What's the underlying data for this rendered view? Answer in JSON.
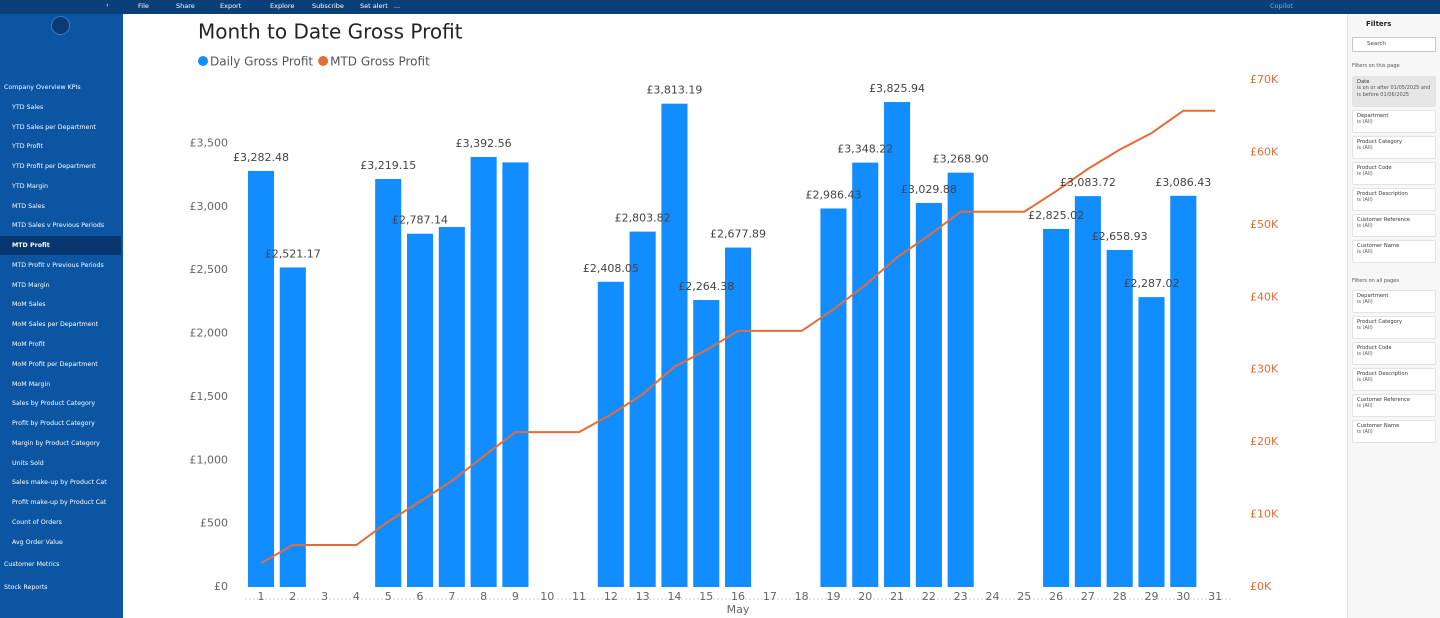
{
  "top_bar": {
    "menu": [
      "File",
      "Share",
      "Export",
      "Explore",
      "Subscribe",
      "Set alert",
      "..."
    ],
    "copilot": "Copilot"
  },
  "nav": {
    "sections": [
      {
        "title": "Company Overview KPIs",
        "items": [
          {
            "label": "YTD Sales"
          },
          {
            "label": "YTD Sales per Department"
          },
          {
            "label": "YTD Profit"
          },
          {
            "label": "YTD Profit per Department"
          },
          {
            "label": "YTD Margin"
          },
          {
            "label": "MTD Sales"
          },
          {
            "label": "MTD Sales v Previous Periods"
          },
          {
            "label": "MTD Profit",
            "selected": true
          },
          {
            "label": "MTD Profit v Previous Periods"
          },
          {
            "label": "MTD Margin"
          },
          {
            "label": "MoM Sales"
          },
          {
            "label": "MoM Sales per Department"
          },
          {
            "label": "MoM Profit"
          },
          {
            "label": "MoM Profit per Department"
          },
          {
            "label": "MoM Margin"
          },
          {
            "label": "Sales by Product Category"
          },
          {
            "label": "Profit by Product Category"
          },
          {
            "label": "Margin by Product Category"
          },
          {
            "label": "Units Sold"
          },
          {
            "label": "Sales make-up by Product Cat"
          },
          {
            "label": "Profit make-up by Product Cat"
          },
          {
            "label": "Count of Orders"
          },
          {
            "label": "Avg Order Value"
          }
        ]
      },
      {
        "title": "Customer Metrics",
        "items": []
      },
      {
        "title": "Stock Reports",
        "items": []
      }
    ]
  },
  "filters": {
    "title": "Filters",
    "search": "Search",
    "page_heading": "Filters on this page",
    "page_filters": [
      {
        "name": "Date",
        "state": "is on or after 01/05/2025 and is before 01/06/2025",
        "active": true
      },
      {
        "name": "Department",
        "state": "is (All)"
      },
      {
        "name": "Product Category",
        "state": "is (All)"
      },
      {
        "name": "Product Code",
        "state": "is (All)"
      },
      {
        "name": "Product Description",
        "state": "is (All)"
      },
      {
        "name": "Customer Reference",
        "state": "is (All)"
      },
      {
        "name": "Customer Name",
        "state": "is (All)"
      }
    ],
    "all_heading": "Filters on all pages",
    "all_filters": [
      {
        "name": "Department",
        "state": "is (All)"
      },
      {
        "name": "Product Category",
        "state": "is (All)"
      },
      {
        "name": "Product Code",
        "state": "is (All)"
      },
      {
        "name": "Product Description",
        "state": "is (All)"
      },
      {
        "name": "Customer Reference",
        "state": "is (All)"
      },
      {
        "name": "Customer Name",
        "state": "is (All)"
      }
    ]
  },
  "chart_data": {
    "type": "combo",
    "title": "Month to Date Gross Profit",
    "x_label": "May",
    "categories": [
      "1",
      "2",
      "3",
      "4",
      "5",
      "6",
      "7",
      "8",
      "9",
      "10",
      "11",
      "12",
      "13",
      "14",
      "15",
      "16",
      "17",
      "18",
      "19",
      "20",
      "21",
      "22",
      "23",
      "24",
      "25",
      "26",
      "27",
      "28",
      "29",
      "30",
      "31"
    ],
    "series": [
      {
        "name": "Daily Gross Profit",
        "type": "bar",
        "color": "#118DFF",
        "values": [
          3282.48,
          2521.17,
          null,
          null,
          3219.15,
          2787.14,
          2840,
          3392.56,
          3350,
          null,
          null,
          2408.05,
          2803.82,
          3813.19,
          2264.38,
          2677.89,
          null,
          null,
          2986.43,
          3348.22,
          3825.94,
          3029.88,
          3268.9,
          null,
          null,
          2825.02,
          3083.72,
          2658.93,
          2287.02,
          3086.43,
          null
        ],
        "value_labels": [
          "£3,282.48",
          "£2,521.17",
          null,
          null,
          "£3,219.15",
          "£2,787.14",
          null,
          "£3,392.56",
          null,
          null,
          null,
          "£2,408.05",
          "£2,803.82",
          "£3,813.19",
          "£2,264.38",
          "£2,677.89",
          null,
          null,
          "£2,986.43",
          "£3,348.22",
          "£3,825.94",
          "£3,029.88",
          "£3,268.90",
          null,
          null,
          "£2,825.02",
          "£3,083.72",
          "£2,658.93",
          "£2,287.02",
          "£3,086.43",
          null
        ]
      },
      {
        "name": "MTD Gross Profit",
        "type": "line",
        "axis": "y2",
        "color": "#E66C37",
        "values": [
          3282.48,
          5803.65,
          5803.65,
          5803.65,
          9022.8,
          11809.94,
          14649.94,
          18042.5,
          21392.5,
          21392.5,
          21392.5,
          23800.55,
          26604.37,
          30417.56,
          32681.94,
          35359.83,
          35359.83,
          35359.83,
          38346.26,
          41694.48,
          45520.42,
          48550.3,
          51819.2,
          51819.2,
          51819.2,
          54644.22,
          57727.94,
          60386.87,
          62673.89,
          65760.32,
          65760.32
        ]
      }
    ],
    "ylim": [
      0,
      4000
    ],
    "yticks": [
      {
        "value": 0,
        "label": "£0"
      },
      {
        "value": 500,
        "label": "£500"
      },
      {
        "value": 1000,
        "label": "£1,000"
      },
      {
        "value": 1500,
        "label": "£1,500"
      },
      {
        "value": 2000,
        "label": "£2,000"
      },
      {
        "value": 2500,
        "label": "£2,500"
      },
      {
        "value": 3000,
        "label": "£3,000"
      },
      {
        "value": 3500,
        "label": "£3,500"
      }
    ],
    "y2lim": [
      0,
      70000
    ],
    "y2ticks": [
      {
        "value": 0,
        "label": "£0K"
      },
      {
        "value": 10000,
        "label": "£10K"
      },
      {
        "value": 20000,
        "label": "£20K"
      },
      {
        "value": 30000,
        "label": "£30K"
      },
      {
        "value": 40000,
        "label": "£40K"
      },
      {
        "value": 50000,
        "label": "£50K"
      },
      {
        "value": 60000,
        "label": "£60K"
      },
      {
        "value": 70000,
        "label": "£70K"
      }
    ],
    "grid": false
  }
}
